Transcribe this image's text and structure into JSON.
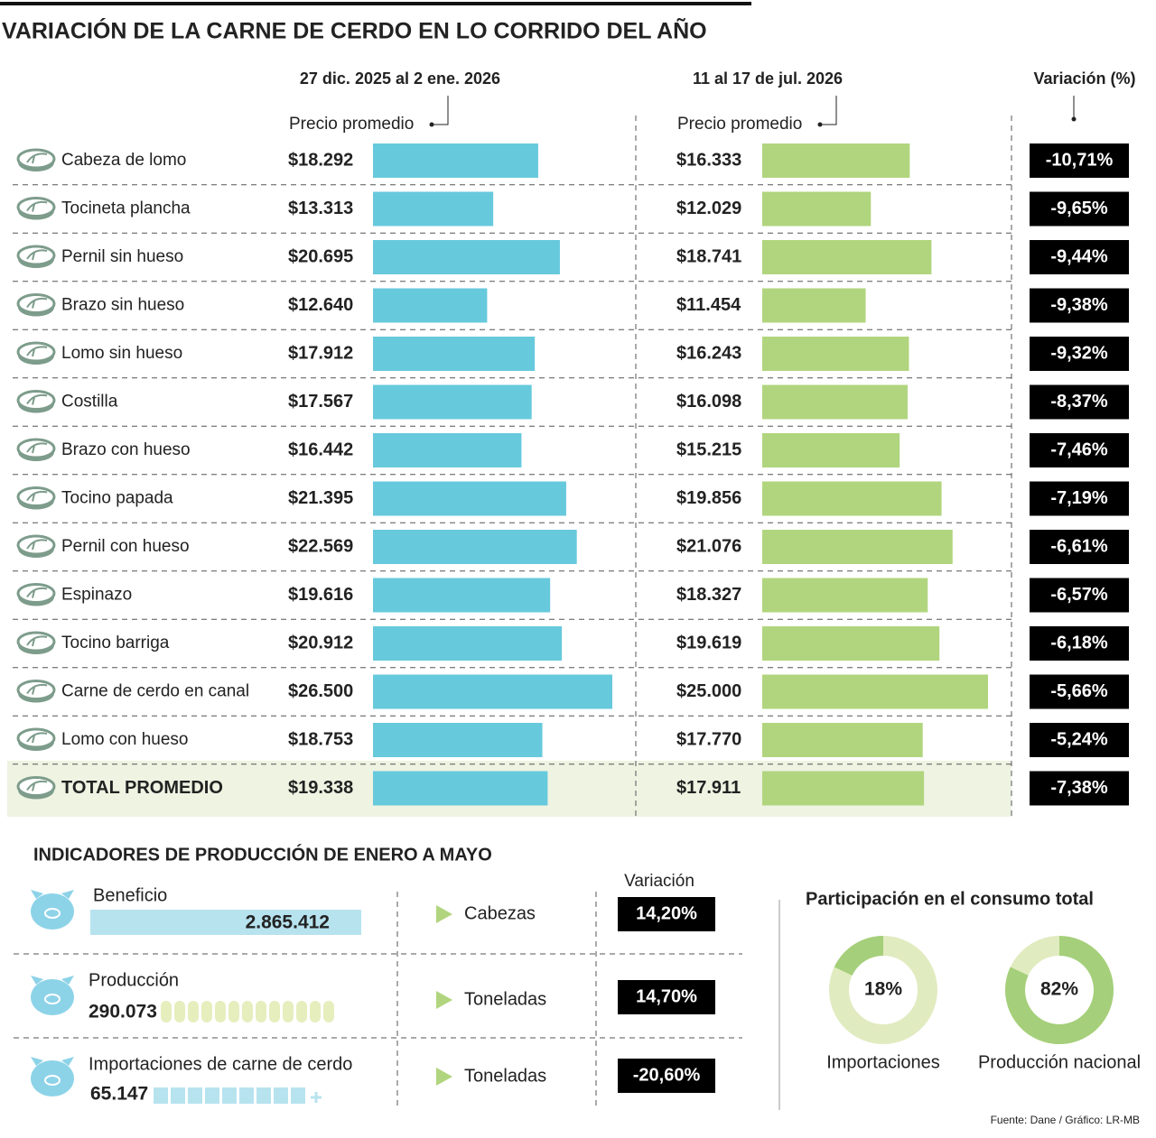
{
  "chart_data": [
    {
      "type": "paired-bar",
      "title": "VARIACIÓN DE LA CARNE DE CERDO EN LO CORRIDO DEL AÑO",
      "value_axis_label": "Precio promedio",
      "categories": [
        "Cabeza de lomo",
        "Tocineta plancha",
        "Pernil sin hueso",
        "Brazo sin hueso",
        "Lomo sin hueso",
        "Costilla",
        "Brazo con hueso",
        "Tocino papada",
        "Pernil con hueso",
        "Espinazo",
        "Tocino barriga",
        "Carne de cerdo en canal",
        "Lomo con hueso",
        "TOTAL PROMEDIO"
      ],
      "series": [
        {
          "name": "27 dic. 2025 al 2 ene. 2026",
          "color": "#67c9dc",
          "values": [
            18292,
            13313,
            20695,
            12640,
            17912,
            17567,
            16442,
            21395,
            22569,
            19616,
            20912,
            26500,
            18753,
            19338
          ],
          "value_labels": [
            "$18.292",
            "$13.313",
            "$20.695",
            "$12.640",
            "$17.912",
            "$17.567",
            "$16.442",
            "$21.395",
            "$22.569",
            "$19.616",
            "$20.912",
            "$26.500",
            "$18.753",
            "$19.338"
          ]
        },
        {
          "name": "11 al 17 de jul. 2026",
          "color": "#b1d57e",
          "values": [
            16333,
            12029,
            18741,
            11454,
            16243,
            16098,
            15215,
            19856,
            21076,
            18327,
            19619,
            25000,
            17770,
            17911
          ],
          "value_labels": [
            "$16.333",
            "$12.029",
            "$18.741",
            "$11.454",
            "$16.243",
            "$16.098",
            "$15.215",
            "$19.856",
            "$21.076",
            "$18.327",
            "$19.619",
            "$25.000",
            "$17.770",
            "$17.911"
          ]
        }
      ],
      "variation": {
        "name": "Variación (%)",
        "color": "#000000",
        "values": [
          -10.71,
          -9.65,
          -9.44,
          -9.38,
          -9.32,
          -8.37,
          -7.46,
          -7.19,
          -6.61,
          -6.57,
          -6.18,
          -5.66,
          -5.24,
          -7.38
        ],
        "value_labels": [
          "-10,71%",
          "-9,65%",
          "-9,44%",
          "-9,38%",
          "-9,32%",
          "-8,37%",
          "-7,46%",
          "-7,19%",
          "-6,61%",
          "-6,57%",
          "-6,18%",
          "-5,66%",
          "-5,24%",
          "-7,38%"
        ]
      }
    },
    {
      "type": "donut",
      "title": "Participación en el consumo total",
      "categories": [
        "Importaciones",
        "Producción nacional"
      ],
      "values": [
        18,
        82
      ],
      "value_labels": [
        "18%",
        "82%"
      ],
      "color": "#a5cf7a"
    }
  ],
  "indicators": {
    "title": "INDICADORES DE PRODUCCIÓN DE ENERO A MAYO",
    "variation_header": "Variación",
    "rows": [
      {
        "label": "Beneficio",
        "value": 2865412,
        "value_label": "2.865.412",
        "unit": "Cabezas",
        "variation": 14.2,
        "variation_label": "14,20%"
      },
      {
        "label": "Producción",
        "value": 290073,
        "value_label": "290.073",
        "unit": "Toneladas",
        "variation": 14.7,
        "variation_label": "14,70%"
      },
      {
        "label": "Importaciones de carne de cerdo",
        "value": 65147,
        "value_label": "65.147",
        "unit": "Toneladas",
        "variation": -20.6,
        "variation_label": "-20,60%"
      }
    ]
  },
  "source": "Fuente: Dane / Gráfico: LR-MB"
}
